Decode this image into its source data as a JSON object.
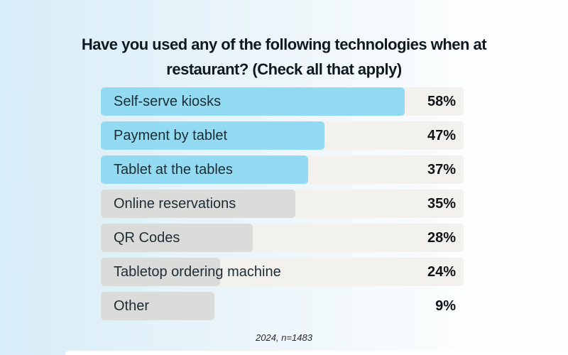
{
  "title": "Have you used any of the following technologies when at restaurant? (Check all that apply)",
  "footnote": "2024, n=1483",
  "colors": {
    "background_left": "#d7edf8",
    "background_right": "#fdfefe",
    "highlight_bar": "#92dbf2",
    "default_bar": "#dbdbd9",
    "track": "#f2f1ee",
    "title_text": "#0e1a20",
    "label_text": "#1d2d35",
    "value_text": "#0f1418",
    "footnote_text": "#2b2b2b"
  },
  "chart_data": {
    "type": "bar",
    "orientation": "horizontal",
    "title": "Have you used any of the following technologies when at restaurant? (Check all that apply)",
    "categories": [
      "Self-serve kiosks",
      "Payment by tablet",
      "Tablet at the tables",
      "Online reservations",
      "QR Codes",
      "Tabletop ordering machine",
      "Other"
    ],
    "values": [
      58,
      47,
      37,
      35,
      28,
      24,
      9
    ],
    "value_suffix": "%",
    "xlabel": "",
    "ylabel": "",
    "annotation": "2024, n=1483",
    "legend": false,
    "grid": false,
    "value_axis_hidden": true,
    "rows": [
      {
        "label": "Self-serve kiosks",
        "value": "58%",
        "highlighted": true,
        "has_track": true,
        "bar_width_pct": 83.8
      },
      {
        "label": "Payment by tablet",
        "value": "47%",
        "highlighted": true,
        "has_track": true,
        "bar_width_pct": 61.6
      },
      {
        "label": "Tablet at the tables",
        "value": "37%",
        "highlighted": true,
        "has_track": true,
        "bar_width_pct": 57.1
      },
      {
        "label": "Online reservations",
        "value": "35%",
        "highlighted": false,
        "has_track": true,
        "bar_width_pct": 53.6
      },
      {
        "label": "QR Codes",
        "value": "28%",
        "highlighted": false,
        "has_track": true,
        "bar_width_pct": 41.9
      },
      {
        "label": "Tabletop ordering machine",
        "value": "24%",
        "highlighted": false,
        "has_track": true,
        "bar_width_pct": 32.9
      },
      {
        "label": "Other",
        "value": "9%",
        "highlighted": false,
        "has_track": false,
        "bar_width_pct": 31.3
      }
    ]
  }
}
